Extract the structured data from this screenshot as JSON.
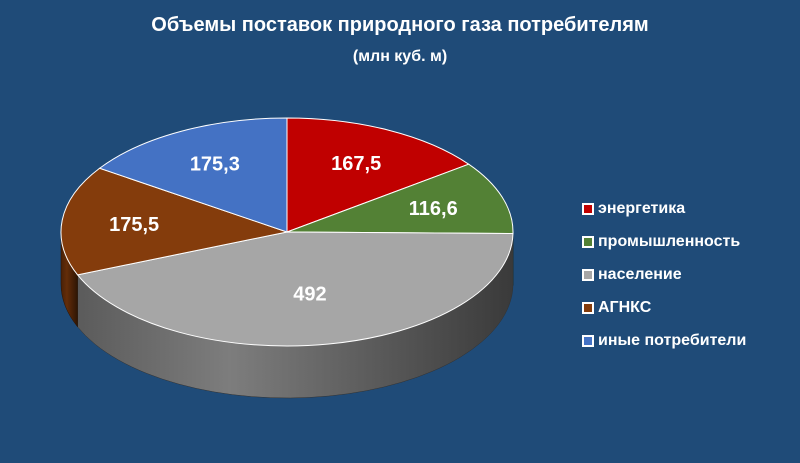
{
  "chart_data": {
    "type": "pie",
    "title": "Объемы поставок природного газа потребителям",
    "subtitle": "(млн куб. м)",
    "categories": [
      "энергетика",
      "промышленность",
      "население",
      "АГНКС",
      "иные потребители"
    ],
    "values": [
      167.5,
      116.6,
      492,
      175.5,
      175.3
    ],
    "data_labels": [
      "167,5",
      "116,6",
      "492",
      "175,5",
      "175,3"
    ],
    "colors": [
      "#c00000",
      "#538135",
      "#a6a6a6",
      "#843c0c",
      "#4472c4"
    ],
    "legend_position": "right",
    "style": "3d"
  }
}
